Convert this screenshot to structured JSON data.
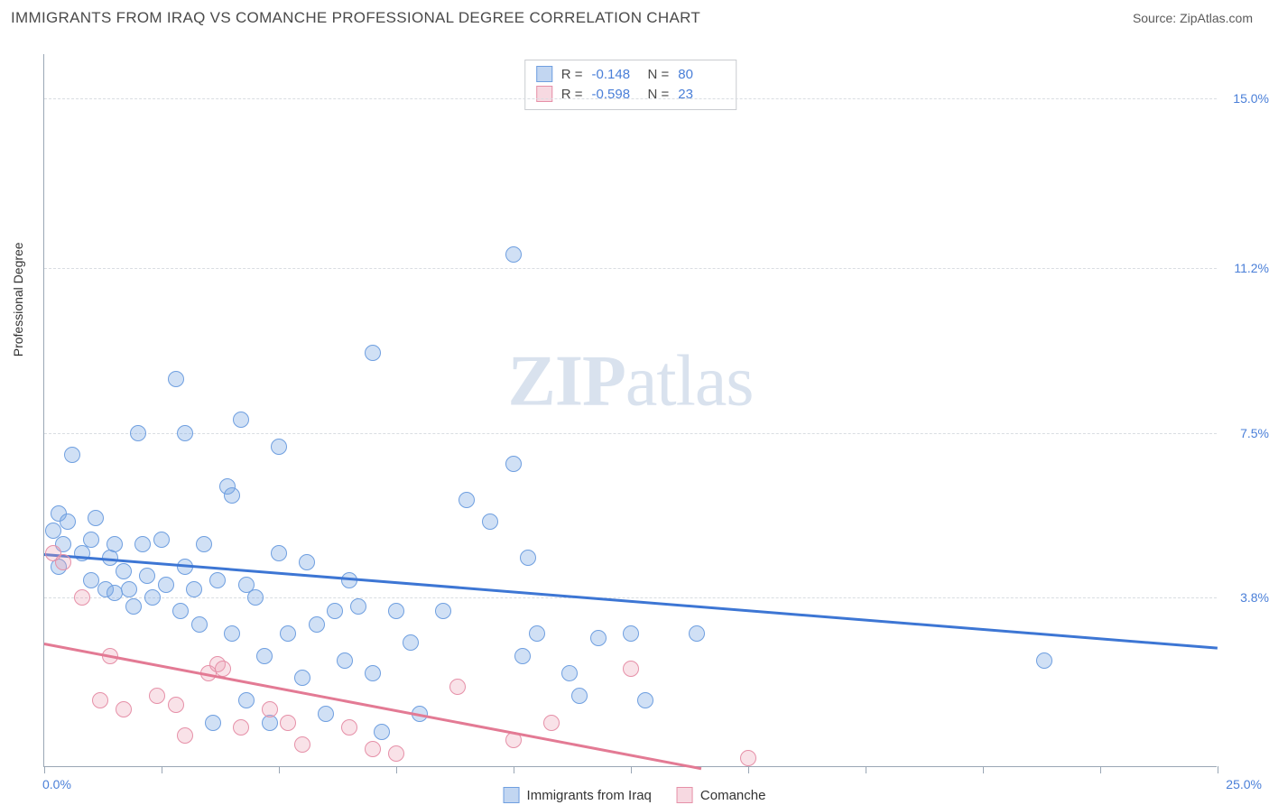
{
  "title": "IMMIGRANTS FROM IRAQ VS COMANCHE PROFESSIONAL DEGREE CORRELATION CHART",
  "source": "Source: ZipAtlas.com",
  "ylabel": "Professional Degree",
  "watermark": {
    "zip": "ZIP",
    "atlas": "atlas"
  },
  "chart": {
    "type": "scatter",
    "xlim": [
      0.0,
      25.0
    ],
    "ylim": [
      0.0,
      16.0
    ],
    "xlabels": {
      "min": "0.0%",
      "max": "25.0%"
    },
    "yticks": [
      {
        "v": 3.8,
        "label": "3.8%"
      },
      {
        "v": 7.5,
        "label": "7.5%"
      },
      {
        "v": 11.2,
        "label": "11.2%"
      },
      {
        "v": 15.0,
        "label": "15.0%"
      }
    ],
    "xtick_positions": [
      0,
      2.5,
      5,
      7.5,
      10,
      12.5,
      15,
      17.5,
      20,
      22.5,
      25
    ],
    "grid_color": "#d9dde2",
    "axis_color": "#9aa7b5",
    "background_color": "#ffffff",
    "marker_radius": 9,
    "series": [
      {
        "name": "Immigrants from Iraq",
        "color_fill": "rgba(120,165,225,0.35)",
        "color_stroke": "#6f9fe0",
        "trend_color": "#3d76d4",
        "R": -0.148,
        "N": 80,
        "trend": {
          "x1": 0.0,
          "y1": 4.8,
          "x2": 25.0,
          "y2": 2.7
        },
        "points": [
          [
            0.2,
            5.3
          ],
          [
            0.3,
            5.7
          ],
          [
            0.4,
            5.0
          ],
          [
            0.5,
            5.5
          ],
          [
            0.3,
            4.5
          ],
          [
            0.6,
            7.0
          ],
          [
            0.8,
            4.8
          ],
          [
            1.0,
            5.1
          ],
          [
            1.0,
            4.2
          ],
          [
            1.1,
            5.6
          ],
          [
            1.3,
            4.0
          ],
          [
            1.4,
            4.7
          ],
          [
            1.5,
            3.9
          ],
          [
            1.5,
            5.0
          ],
          [
            1.7,
            4.4
          ],
          [
            1.8,
            4.0
          ],
          [
            1.9,
            3.6
          ],
          [
            2.0,
            7.5
          ],
          [
            2.1,
            5.0
          ],
          [
            2.2,
            4.3
          ],
          [
            2.3,
            3.8
          ],
          [
            2.5,
            5.1
          ],
          [
            2.6,
            4.1
          ],
          [
            2.8,
            8.7
          ],
          [
            2.9,
            3.5
          ],
          [
            3.0,
            7.5
          ],
          [
            3.0,
            4.5
          ],
          [
            3.2,
            4.0
          ],
          [
            3.3,
            3.2
          ],
          [
            3.4,
            5.0
          ],
          [
            3.6,
            1.0
          ],
          [
            3.7,
            4.2
          ],
          [
            3.9,
            6.3
          ],
          [
            4.0,
            6.1
          ],
          [
            4.0,
            3.0
          ],
          [
            4.2,
            7.8
          ],
          [
            4.3,
            4.1
          ],
          [
            4.3,
            1.5
          ],
          [
            4.5,
            3.8
          ],
          [
            4.7,
            2.5
          ],
          [
            4.8,
            1.0
          ],
          [
            5.0,
            4.8
          ],
          [
            5.0,
            7.2
          ],
          [
            5.2,
            3.0
          ],
          [
            5.5,
            2.0
          ],
          [
            5.6,
            4.6
          ],
          [
            5.8,
            3.2
          ],
          [
            6.0,
            1.2
          ],
          [
            6.2,
            3.5
          ],
          [
            6.4,
            2.4
          ],
          [
            6.5,
            4.2
          ],
          [
            6.7,
            3.6
          ],
          [
            7.0,
            9.3
          ],
          [
            7.0,
            2.1
          ],
          [
            7.2,
            0.8
          ],
          [
            7.5,
            3.5
          ],
          [
            7.8,
            2.8
          ],
          [
            8.0,
            1.2
          ],
          [
            8.5,
            3.5
          ],
          [
            9.0,
            6.0
          ],
          [
            9.5,
            5.5
          ],
          [
            10.0,
            6.8
          ],
          [
            10.0,
            11.5
          ],
          [
            10.2,
            2.5
          ],
          [
            10.3,
            4.7
          ],
          [
            10.5,
            3.0
          ],
          [
            11.2,
            2.1
          ],
          [
            11.4,
            1.6
          ],
          [
            11.8,
            2.9
          ],
          [
            12.5,
            3.0
          ],
          [
            12.8,
            1.5
          ],
          [
            13.9,
            3.0
          ],
          [
            21.3,
            2.4
          ]
        ]
      },
      {
        "name": "Comanche",
        "color_fill": "rgba(235,160,180,0.30)",
        "color_stroke": "#e690a8",
        "trend_color": "#e37a94",
        "R": -0.598,
        "N": 23,
        "trend": {
          "x1": 0.0,
          "y1": 2.8,
          "x2": 14.0,
          "y2": 0.0
        },
        "points": [
          [
            0.2,
            4.8
          ],
          [
            0.4,
            4.6
          ],
          [
            0.8,
            3.8
          ],
          [
            1.2,
            1.5
          ],
          [
            1.4,
            2.5
          ],
          [
            1.7,
            1.3
          ],
          [
            2.4,
            1.6
          ],
          [
            2.8,
            1.4
          ],
          [
            3.0,
            0.7
          ],
          [
            3.5,
            2.1
          ],
          [
            3.7,
            2.3
          ],
          [
            3.8,
            2.2
          ],
          [
            4.2,
            0.9
          ],
          [
            4.8,
            1.3
          ],
          [
            5.2,
            1.0
          ],
          [
            5.5,
            0.5
          ],
          [
            6.5,
            0.9
          ],
          [
            7.0,
            0.4
          ],
          [
            7.5,
            0.3
          ],
          [
            8.8,
            1.8
          ],
          [
            10.0,
            0.6
          ],
          [
            10.8,
            1.0
          ],
          [
            12.5,
            2.2
          ],
          [
            15.0,
            0.2
          ]
        ]
      }
    ]
  },
  "stat_box": {
    "rows": [
      {
        "swatch": "blue",
        "r_label": "R =",
        "r_val": "-0.148",
        "n_label": "N =",
        "n_val": "80"
      },
      {
        "swatch": "pink",
        "r_label": "R =",
        "r_val": "-0.598",
        "n_label": "N =",
        "n_val": "23"
      }
    ]
  },
  "legend": [
    {
      "swatch": "blue",
      "label": "Immigrants from Iraq"
    },
    {
      "swatch": "pink",
      "label": "Comanche"
    }
  ]
}
